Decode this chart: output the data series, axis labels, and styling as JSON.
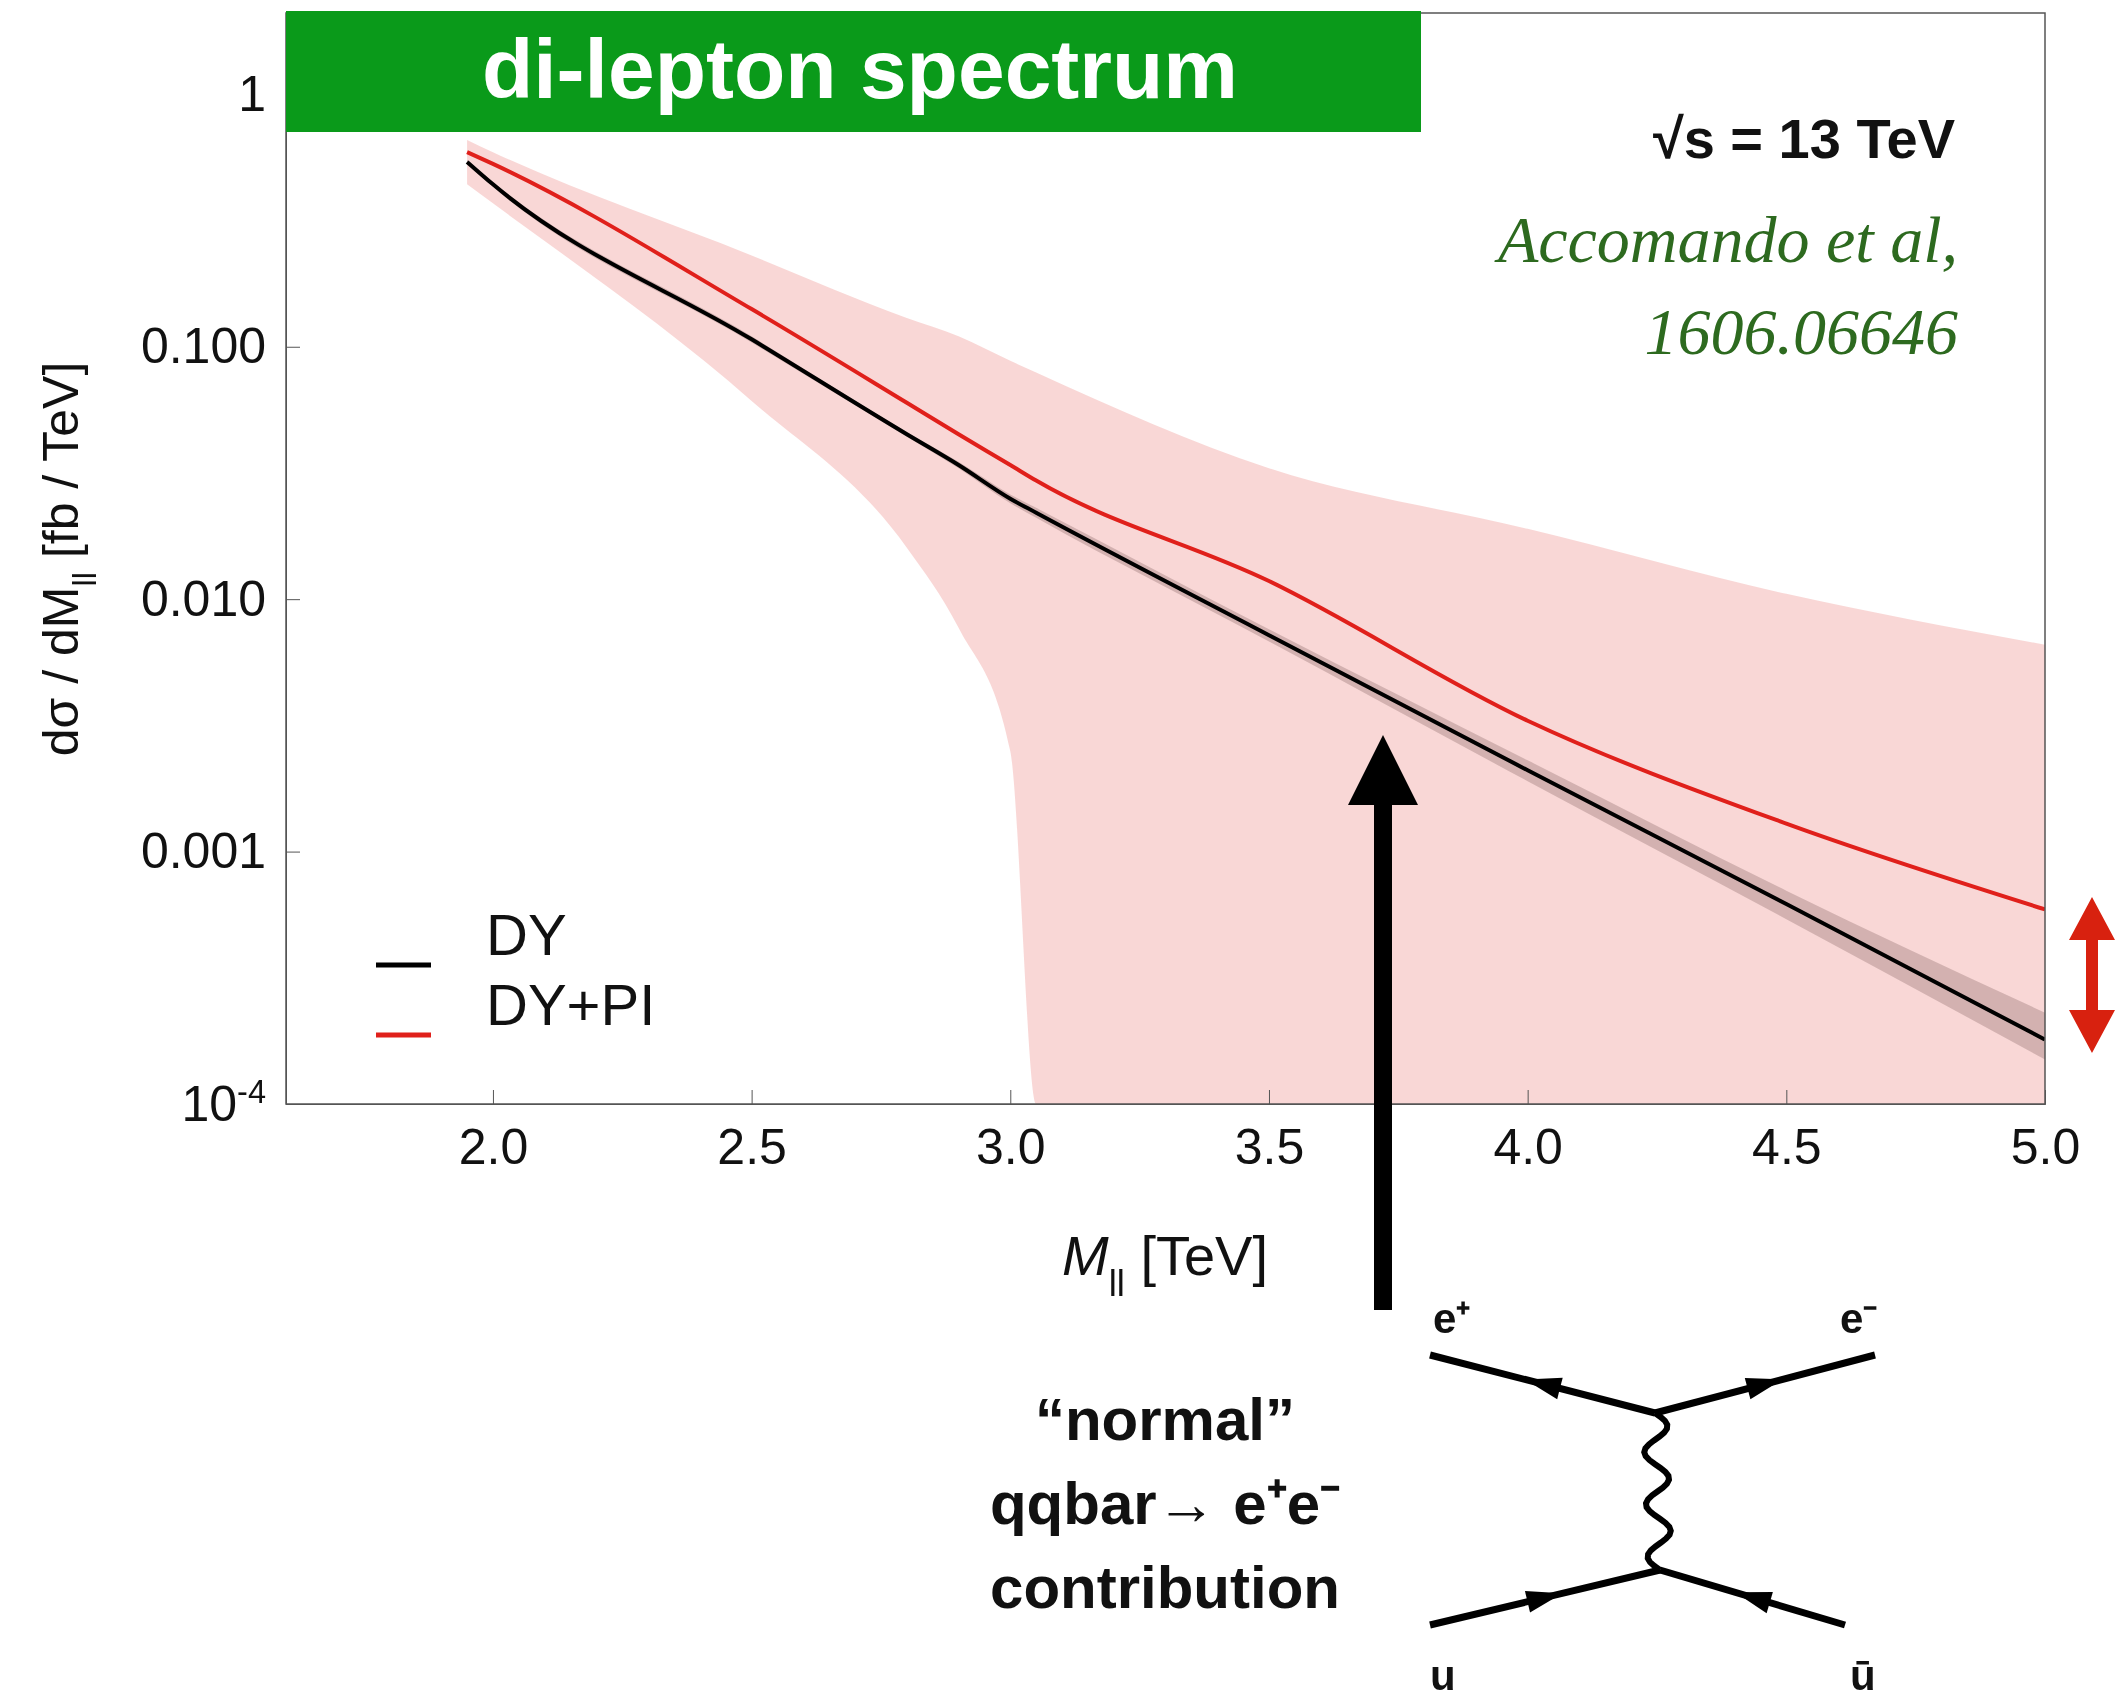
{
  "chart_data": {
    "type": "line",
    "title": "di-lepton spectrum",
    "xlabel": "M$_{ll}$  [TeV]",
    "ylabel": "dσ / dM$_{ll}$ [fb / TeV]",
    "x": [
      1.95,
      2.0,
      2.5,
      2.8,
      2.9,
      3.0,
      3.05,
      3.5,
      4.0,
      4.5,
      5.0
    ],
    "series": [
      {
        "name": "DY",
        "color": "#000000",
        "values": [
          0.54,
          0.44,
          0.107,
          0.045,
          0.034,
          0.025,
          0.022,
          0.0072,
          0.0021,
          0.00062,
          0.00018
        ],
        "lower": [
          0.53,
          0.43,
          0.104,
          0.044,
          0.033,
          0.024,
          0.021,
          0.0068,
          0.0019,
          0.00054,
          0.00015
        ],
        "upper": [
          0.55,
          0.45,
          0.11,
          0.046,
          0.035,
          0.026,
          0.023,
          0.0076,
          0.0023,
          0.0007,
          0.00023
        ]
      },
      {
        "name": "DY+PI",
        "color": "#e0201b",
        "values": [
          0.59,
          0.53,
          0.141,
          0.06,
          0.045,
          0.034,
          0.0295,
          0.0118,
          0.0033,
          0.00129,
          0.00059
        ],
        "lower": [
          0.44,
          0.37,
          0.061,
          0.016,
          0.0077,
          0.0025,
          0.0001,
          0.0001,
          0.0001,
          0.0001,
          0.0001
        ],
        "upper": [
          0.66,
          0.59,
          0.23,
          0.13,
          0.11,
          0.088,
          0.079,
          0.033,
          0.019,
          0.0105,
          0.0066
        ]
      }
    ],
    "xlim": [
      1.6,
      5.0
    ],
    "ylim": [
      0.0001,
      2.1
    ],
    "log": true,
    "xticks": [
      {
        "value": 2.0,
        "label": "2.0"
      },
      {
        "value": 2.5,
        "label": "2.5"
      },
      {
        "value": 3.0,
        "label": "3.0"
      },
      {
        "value": 3.5,
        "label": "3.5"
      },
      {
        "value": 4.0,
        "label": "4.0"
      },
      {
        "value": 4.5,
        "label": "4.5"
      },
      {
        "value": 5.0,
        "label": "5.0"
      }
    ],
    "yticks": [
      1,
      {
        "value": 0.1,
        "label": "0.100"
      },
      {
        "value": 0.01,
        "label": "0.010"
      },
      {
        "value": 0.001,
        "label": "0.001"
      },
      {
        "value": 0.0001,
        "label": "10$^{-4}$"
      }
    ],
    "legend": "bottom left",
    "annotations": [
      "√s = 13 TeV",
      "Accomando et al,\n1606.06646",
      "“normal”\nqqbar→ e⁺e⁻\ncontribution",
      "e⁺",
      "e⁻",
      "u",
      "ū"
    ]
  }
}
